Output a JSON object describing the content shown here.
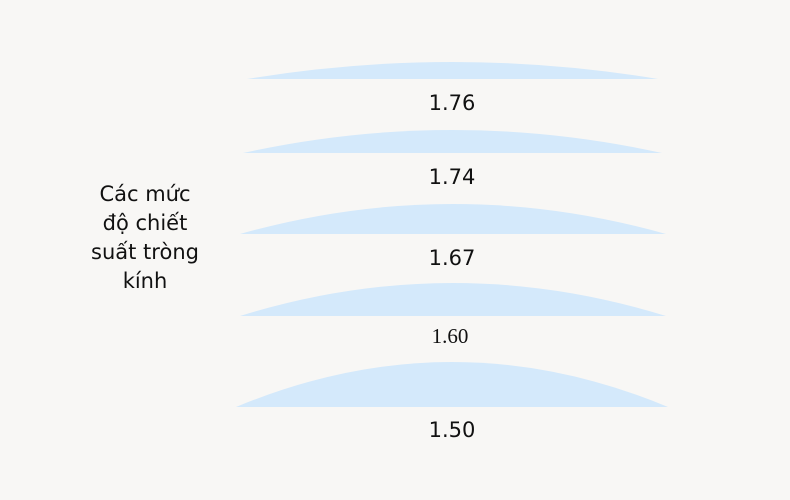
{
  "title": "Các mức độ chiết suất tròng kính",
  "lenses": [
    {
      "label": "1.76"
    },
    {
      "label": "1.74"
    },
    {
      "label": "1.67"
    },
    {
      "label": "1.60"
    },
    {
      "label": "1.50"
    }
  ]
}
